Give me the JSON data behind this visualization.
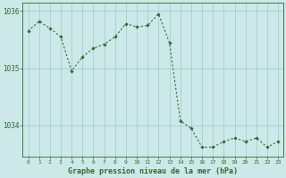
{
  "x": [
    0,
    1,
    2,
    3,
    4,
    5,
    6,
    7,
    8,
    9,
    10,
    11,
    12,
    13,
    14,
    15,
    16,
    17,
    18,
    19,
    20,
    21,
    22,
    23
  ],
  "y": [
    1035.65,
    1035.82,
    1035.7,
    1035.55,
    1034.95,
    1035.2,
    1035.35,
    1035.42,
    1035.55,
    1035.78,
    1035.72,
    1035.75,
    1035.95,
    1035.45,
    1034.08,
    1033.95,
    1033.62,
    1033.62,
    1033.72,
    1033.78,
    1033.72,
    1033.78,
    1033.62,
    1033.72
  ],
  "line_color": "#2d6a2d",
  "marker": "D",
  "marker_size": 1.8,
  "bg_color": "#cce8e8",
  "grid_color": "#99cccc",
  "axis_color": "#2d6a2d",
  "tick_color": "#2d6a2d",
  "xlabel": "Graphe pression niveau de la mer (hPa)",
  "xlabel_fontsize": 6.0,
  "ylim": [
    1033.45,
    1036.15
  ],
  "yticks": [
    1034,
    1035,
    1036
  ],
  "xticks": [
    0,
    1,
    2,
    3,
    4,
    5,
    6,
    7,
    8,
    9,
    10,
    11,
    12,
    13,
    14,
    15,
    16,
    17,
    18,
    19,
    20,
    21,
    22,
    23
  ]
}
